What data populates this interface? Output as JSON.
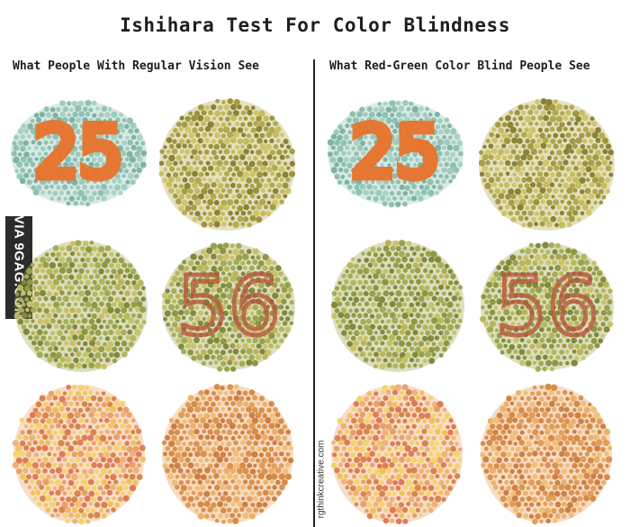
{
  "title": "Ishihara Test For Color Blindness",
  "columns": {
    "left": "What People With Regular Vision See",
    "right": "What Red-Green Color Blind People See"
  },
  "watermarks": {
    "left": "VIA 9GAG.COM",
    "right": "rgthinkcreative.com"
  },
  "plates": [
    {
      "id": "left-25",
      "column": "left",
      "row": 1,
      "palette": "teal",
      "figure": "25",
      "figure_color": "#e8732c"
    },
    {
      "id": "left-olive-1",
      "column": "left",
      "row": 1,
      "palette": "olive",
      "figure": "",
      "figure_color": ""
    },
    {
      "id": "left-olive-2",
      "column": "left",
      "row": 2,
      "palette": "green",
      "figure": "",
      "figure_color": ""
    },
    {
      "id": "left-56",
      "column": "left",
      "row": 2,
      "palette": "green",
      "figure": "56",
      "figure_color": "#b8553e"
    },
    {
      "id": "left-warm-1",
      "column": "left",
      "row": 3,
      "palette": "warm",
      "figure": "",
      "figure_color": ""
    },
    {
      "id": "left-warm-2",
      "column": "left",
      "row": 3,
      "palette": "orange",
      "figure": "",
      "figure_color": ""
    },
    {
      "id": "right-25",
      "column": "right",
      "row": 1,
      "palette": "teal",
      "figure": "25",
      "figure_color": "#e8732c"
    },
    {
      "id": "right-olive-1",
      "column": "right",
      "row": 1,
      "palette": "olive",
      "figure": "",
      "figure_color": ""
    },
    {
      "id": "right-olive-2",
      "column": "right",
      "row": 2,
      "palette": "green",
      "figure": "",
      "figure_color": ""
    },
    {
      "id": "right-56",
      "column": "right",
      "row": 2,
      "palette": "green",
      "figure": "56",
      "figure_color": "#b8553e"
    },
    {
      "id": "right-warm-1",
      "column": "right",
      "row": 3,
      "palette": "warm",
      "figure": "",
      "figure_color": ""
    },
    {
      "id": "right-warm-2",
      "column": "right",
      "row": 3,
      "palette": "orange",
      "figure": "",
      "figure_color": ""
    }
  ],
  "palettes": {
    "teal": [
      "#8ec2b4",
      "#9fcabc",
      "#7fb3a4",
      "#a9d1c4",
      "#93bfae"
    ],
    "olive": [
      "#b3a94e",
      "#9d943d",
      "#c6bb5e",
      "#8a8336",
      "#d1c46b",
      "#a59c47"
    ],
    "green": [
      "#9aa04a",
      "#b7b75a",
      "#7f8a3b",
      "#c9c269",
      "#8e9742",
      "#a3ad55"
    ],
    "warm": [
      "#e9a06a",
      "#f0c25c",
      "#d9854e",
      "#f4d36a",
      "#e07a57",
      "#eeb27a"
    ],
    "orange": [
      "#e39d5a",
      "#d88a48",
      "#eab06c",
      "#cf7f45",
      "#f0bf78",
      "#dc9250"
    ]
  },
  "colors": {
    "title": "#1e1e1e",
    "divider": "#222222",
    "background": "#ffffff"
  }
}
